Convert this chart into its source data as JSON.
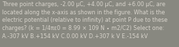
{
  "text": "Three point charges, -2.00 μC, +4.00 μC, and +6.00 μC, are\nlocated along the x-axis as shown in the figure. What is the\nelectric potential (relative to infinity) at point P due to these\ncharges? (k = 1/4πε0 = 8.99 × 109 N ∙ m2/C2) Select one:\nA.-307 kV B.+154 kV C.0.00 kV D.+307 k V E.-154 kV",
  "bg_color": "#888880",
  "text_color": "#d8d4cc",
  "font_size": 5.8,
  "fig_width": 2.62,
  "fig_height": 0.69
}
